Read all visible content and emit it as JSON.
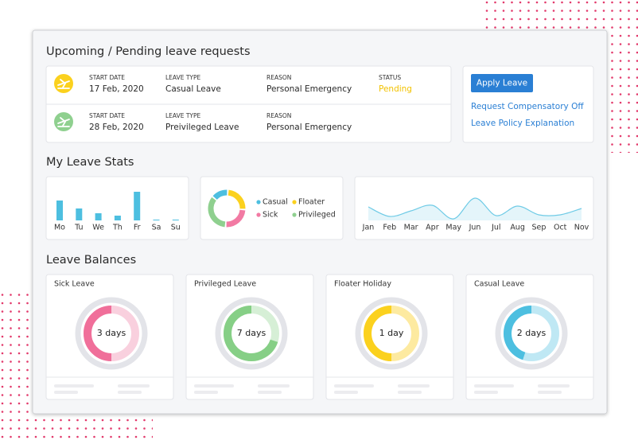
{
  "requests": {
    "title": "Upcoming / Pending leave requests",
    "rows": [
      {
        "start_date_label": "START DATE",
        "start_date": "17 Feb, 2020",
        "leave_type_label": "LEAVE TYPE",
        "leave_type": "Casual Leave",
        "reason_label": "REASON",
        "reason": "Personal Emergency",
        "status_label": "STATUS",
        "status": "Pending"
      },
      {
        "start_date_label": "START DATE",
        "start_date": "28 Feb, 2020",
        "leave_type_label": "LEAVE TYPE",
        "leave_type": "Preivileged Leave",
        "reason_label": "REASON",
        "reason": "Personal Emergency"
      }
    ]
  },
  "actions": {
    "button": "Apply Leave",
    "links": [
      "Request Compensatory Off",
      "Leave Policy Explanation"
    ]
  },
  "stats": {
    "title": "My Leave Stats",
    "charts": [
      {
        "type": "bar",
        "categories": [
          "Mo",
          "Tu",
          "We",
          "Th",
          "Fr",
          "Sa",
          "Su"
        ],
        "values": [
          25,
          15,
          9,
          6,
          36,
          1,
          1
        ],
        "color": "#4dbfe0",
        "ylim": [
          0,
          40
        ]
      },
      {
        "type": "donut",
        "series": [
          {
            "name": "Casual",
            "color": "#4dbfe0",
            "value": 15
          },
          {
            "name": "Floater",
            "color": "#fbd11e",
            "value": 25
          },
          {
            "name": "Sick",
            "color": "#f27aa3",
            "value": 25
          },
          {
            "name": "Privileged",
            "color": "#8fd08f",
            "value": 35
          }
        ]
      },
      {
        "type": "line",
        "categories": [
          "Jan",
          "Feb",
          "Mar",
          "Apr",
          "May",
          "Jun",
          "Jul",
          "Aug",
          "Sep",
          "Oct",
          "Nov"
        ],
        "values": [
          17,
          5,
          12,
          19,
          2,
          28,
          6,
          18,
          7,
          7,
          15
        ],
        "color": "#6fcbe6",
        "ylim": [
          0,
          30
        ]
      }
    ]
  },
  "balances": {
    "title": "Leave Balances",
    "cards": [
      {
        "name": "Sick Leave",
        "label": "3 days",
        "progress": 50,
        "color": "#f06f9a",
        "track": "#f9d0de"
      },
      {
        "name": "Privileged Leave",
        "label": "7 days",
        "progress": 70,
        "color": "#86cf86",
        "track": "#d6efd6"
      },
      {
        "name": "Floater Holiday",
        "label": "1 day",
        "progress": 50,
        "color": "#fbd11e",
        "track": "#fdeaa0"
      },
      {
        "name": "Casual Leave",
        "label": "2 days",
        "progress": 45,
        "color": "#4dbfe0",
        "track": "#bfe8f4"
      }
    ]
  }
}
